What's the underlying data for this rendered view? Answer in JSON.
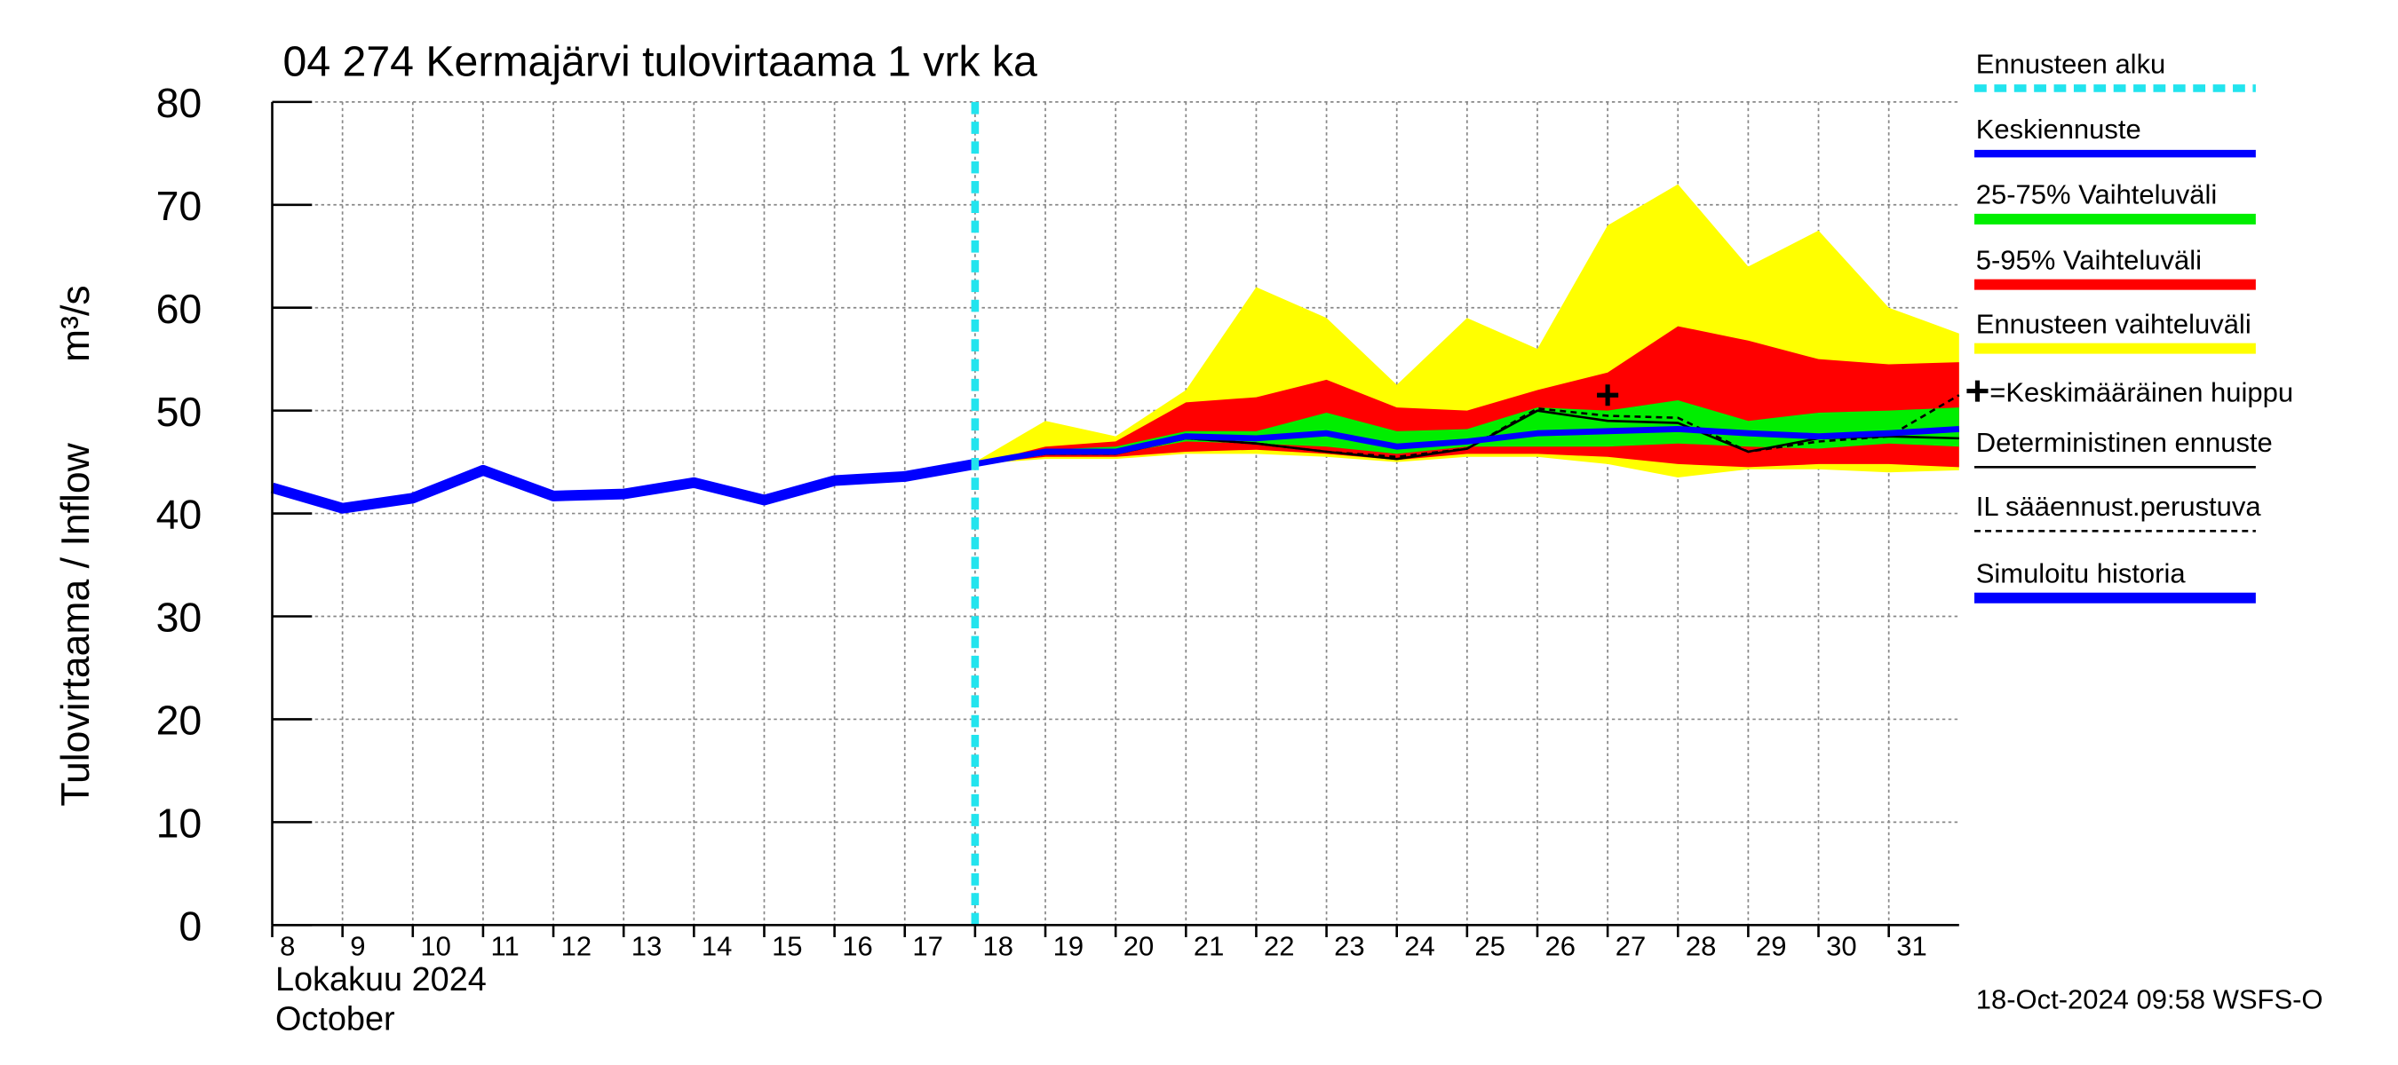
{
  "chart_data": {
    "type": "line",
    "title": "04 274 Kermajärvi tulovirtaama 1 vrk ka",
    "ylabel": "Tulovirtaama / Inflow",
    "yunit": "m³/s",
    "xlabel_month": "Lokakuu  2024",
    "xlabel_month_en": "October",
    "footer": "18-Oct-2024 09:58 WSFS-O",
    "x": [
      8,
      9,
      10,
      11,
      12,
      13,
      14,
      15,
      16,
      17,
      18,
      19,
      20,
      21,
      22,
      23,
      24,
      25,
      26,
      27,
      28,
      29,
      30,
      31,
      32
    ],
    "xlim": [
      8,
      32
    ],
    "xticks": [
      8,
      9,
      10,
      11,
      12,
      13,
      14,
      15,
      16,
      17,
      18,
      19,
      20,
      21,
      22,
      23,
      24,
      25,
      26,
      27,
      28,
      29,
      30,
      31
    ],
    "ylim": [
      0,
      80
    ],
    "yticks": [
      0,
      10,
      20,
      30,
      40,
      50,
      60,
      70,
      80
    ],
    "grid": true,
    "series": [
      {
        "name": "Ennusteen alku",
        "kind": "vline",
        "color": "#22e4ee",
        "x": 18
      },
      {
        "name": "Keskiennuste",
        "kind": "line",
        "color": "#0000ff",
        "linewidth": 4,
        "values": [
          null,
          null,
          null,
          null,
          null,
          null,
          null,
          null,
          null,
          null,
          44.8,
          46,
          46,
          47.5,
          47.3,
          47.8,
          46.5,
          47,
          47.8,
          48,
          48.2,
          47.8,
          47.5,
          47.8,
          48.2
        ]
      },
      {
        "name": "25-75% Vaihteluväli",
        "kind": "band",
        "color": "#00ee00",
        "low": [
          null,
          null,
          null,
          null,
          null,
          null,
          null,
          null,
          null,
          null,
          44.8,
          45.8,
          45.8,
          47,
          46.8,
          46.5,
          45.8,
          46.5,
          46.5,
          46.5,
          46.8,
          46.5,
          46.3,
          46.8,
          46.5
        ],
        "high": [
          null,
          null,
          null,
          null,
          null,
          null,
          null,
          null,
          null,
          null,
          44.8,
          46.2,
          46.5,
          48,
          48,
          49.8,
          48,
          48.2,
          50.3,
          50,
          51,
          49,
          49.8,
          50,
          50.3
        ]
      },
      {
        "name": "5-95% Vaihteluväli",
        "kind": "band",
        "color": "#ff0000",
        "low": [
          null,
          null,
          null,
          null,
          null,
          null,
          null,
          null,
          null,
          null,
          44.8,
          45.5,
          45.5,
          46,
          46.2,
          45.8,
          45.2,
          45.8,
          45.8,
          45.5,
          44.8,
          44.5,
          44.8,
          44.8,
          44.5
        ],
        "high": [
          null,
          null,
          null,
          null,
          null,
          null,
          null,
          null,
          null,
          null,
          44.8,
          46.5,
          47,
          50.8,
          51.3,
          53,
          50.3,
          50,
          52,
          53.7,
          58.2,
          56.8,
          55,
          54.5,
          54.7
        ]
      },
      {
        "name": "Ennusteen vaihteluväli",
        "kind": "band",
        "color": "#ffff00",
        "low": [
          null,
          null,
          null,
          null,
          null,
          null,
          null,
          null,
          null,
          null,
          44.8,
          45.3,
          45.3,
          45.8,
          45.8,
          45.5,
          45,
          45.5,
          45.5,
          44.8,
          43.5,
          44.3,
          44.3,
          44,
          44.2
        ],
        "high": [
          null,
          null,
          null,
          null,
          null,
          null,
          null,
          null,
          null,
          null,
          45,
          49,
          47.5,
          52,
          62,
          59,
          52.5,
          59,
          56,
          68,
          72,
          64,
          67.5,
          60,
          57.5
        ]
      },
      {
        "name": "=Keskimääräinen huippu",
        "kind": "marker",
        "color": "#000000",
        "x": 27,
        "y": 51.5
      },
      {
        "name": "Deterministinen ennuste",
        "kind": "line",
        "color": "#000000",
        "linewidth": 1.5,
        "values": [
          null,
          null,
          null,
          null,
          null,
          null,
          null,
          null,
          null,
          null,
          44.8,
          45.8,
          45.8,
          47.3,
          46.8,
          46,
          45.3,
          46.3,
          50,
          49,
          48.8,
          46,
          47.3,
          47.5,
          47.3
        ]
      },
      {
        "name": "IL sääennust.perustuva",
        "kind": "line",
        "color": "#000000",
        "linewidth": 1.5,
        "dashed": true,
        "values": [
          null,
          null,
          null,
          null,
          null,
          null,
          null,
          null,
          null,
          null,
          44.8,
          45.8,
          45.8,
          47.3,
          46.8,
          46,
          45.5,
          46.3,
          50.2,
          49.5,
          49.3,
          46,
          47,
          47.5,
          51.5
        ]
      },
      {
        "name": "Simuloitu historia",
        "kind": "line",
        "color": "#0000ff",
        "linewidth": 7,
        "values": [
          42.5,
          40.5,
          41.5,
          44.2,
          41.7,
          41.9,
          43,
          41.3,
          43.2,
          43.6,
          44.8,
          null,
          null,
          null,
          null,
          null,
          null,
          null,
          null,
          null,
          null,
          null,
          null,
          null,
          null
        ]
      }
    ]
  }
}
